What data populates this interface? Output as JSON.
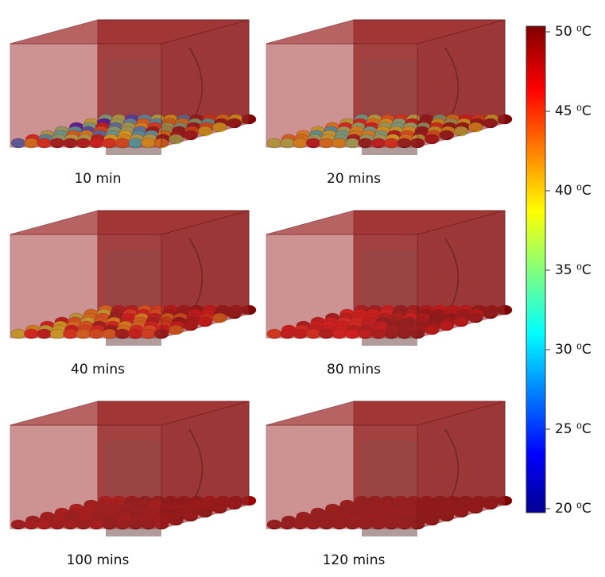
{
  "panels": [
    {
      "label": "10 min"
    },
    {
      "label": "20 mins"
    },
    {
      "label": "40 mins"
    },
    {
      "label": "80 mins"
    },
    {
      "label": "100 mins"
    },
    {
      "label": "120 mins"
    }
  ],
  "colorbar": {
    "lim": [
      20,
      50
    ],
    "ticks": [
      {
        "value": 50,
        "label": "50 ⁰C"
      },
      {
        "value": 45,
        "label": "45 ⁰C"
      },
      {
        "value": 40,
        "label": "40 ⁰C"
      },
      {
        "value": 35,
        "label": "35 ⁰C"
      },
      {
        "value": 30,
        "label": "30 ⁰C"
      },
      {
        "value": 25,
        "label": "25 ⁰C"
      },
      {
        "value": 20,
        "label": "20 ⁰C"
      }
    ]
  }
}
